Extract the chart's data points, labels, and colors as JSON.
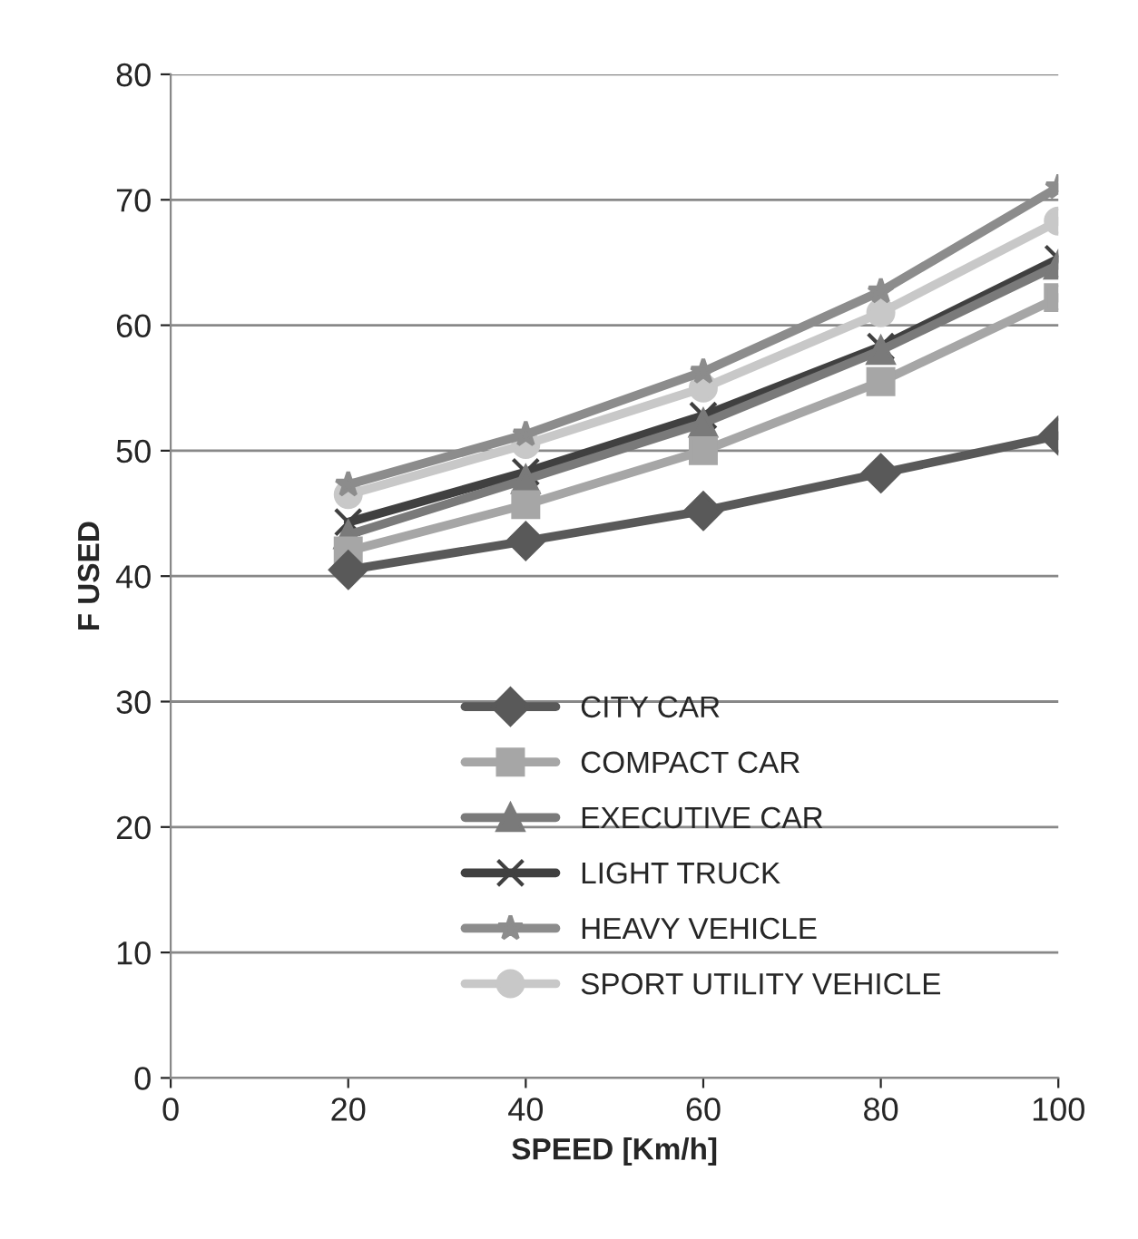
{
  "chart_data": {
    "type": "line",
    "xlabel": "SPEED [Km/h]",
    "ylabel": "F USED",
    "x": [
      20,
      40,
      60,
      80,
      100
    ],
    "series": [
      {
        "name": "CITY CAR",
        "color": "#595959",
        "marker": "diamond",
        "values": [
          40.5,
          42.8,
          45.2,
          48.2,
          51.2
        ]
      },
      {
        "name": "COMPACT CAR",
        "color": "#a6a6a6",
        "marker": "square",
        "values": [
          42,
          45.7,
          50,
          55.5,
          62.2
        ]
      },
      {
        "name": "EXECUTIVE CAR",
        "color": "#7a7a7a",
        "marker": "triangle",
        "values": [
          43.3,
          47.7,
          52.2,
          58,
          64.8
        ]
      },
      {
        "name": "LIGHT TRUCK",
        "color": "#404040",
        "marker": "cross",
        "values": [
          44.3,
          48.3,
          52.8,
          58.3,
          65.3
        ]
      },
      {
        "name": "HEAVY VEHICLE",
        "color": "#8c8c8c",
        "marker": "star",
        "values": [
          47.3,
          51.3,
          56.3,
          62.7,
          71
        ]
      },
      {
        "name": "SPORT UTILITY VEHICLE",
        "color": "#c8c8c8",
        "marker": "circle",
        "values": [
          46.5,
          50.5,
          55,
          61,
          68.3
        ]
      }
    ],
    "xlim": [
      0,
      100
    ],
    "xticks": [
      0,
      20,
      40,
      60,
      80,
      100
    ],
    "ylim": [
      0,
      80
    ],
    "yticks": [
      0,
      10,
      20,
      30,
      40,
      50,
      60,
      70,
      80
    ],
    "grid": "y",
    "legend": "bottom",
    "line_style": "solid"
  }
}
